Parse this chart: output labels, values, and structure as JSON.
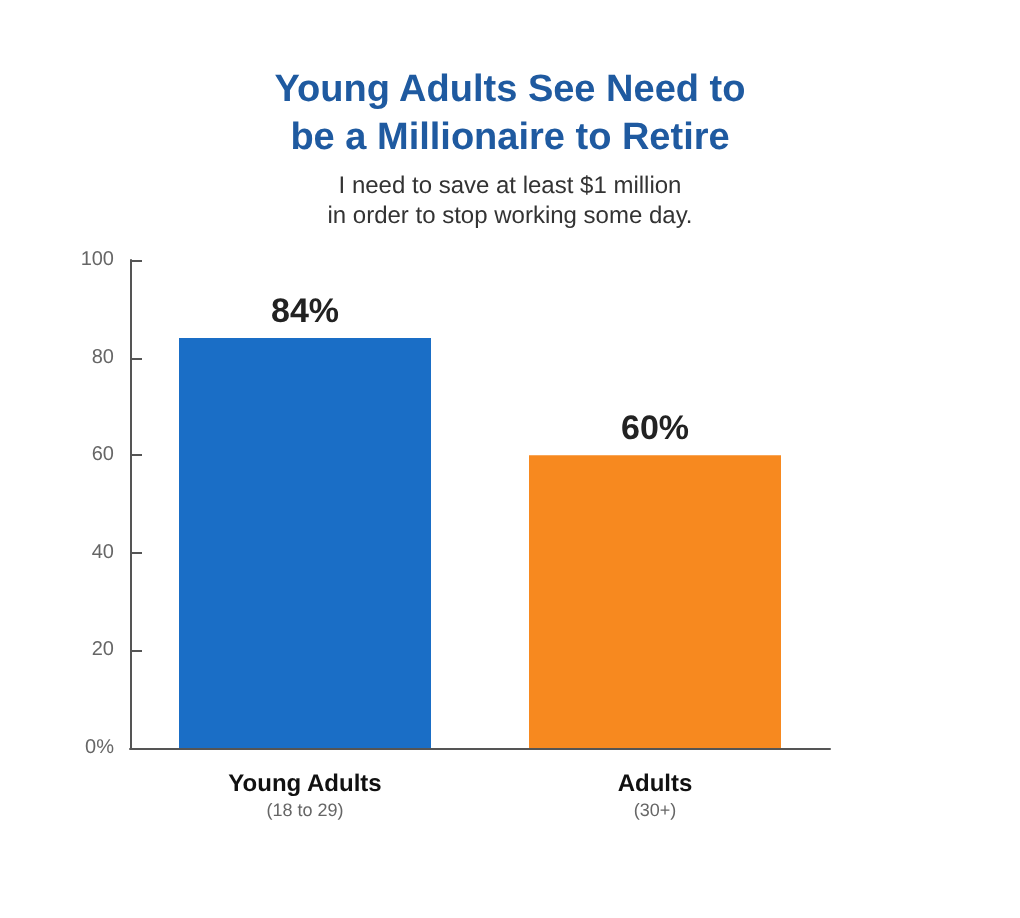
{
  "chart_data": {
    "type": "bar",
    "title": "Young Adults See Need to\nbe a Millionaire to Retire",
    "subtitle": "I need to save at least $1 million\nin order to stop working some day.",
    "categories": [
      "Young Adults\n(18 to 29)",
      "Adults\n(30+)"
    ],
    "values": [
      84,
      60
    ],
    "colors": [
      "#1a6ec6",
      "#f7891f"
    ],
    "value_labels": [
      "84%",
      "60%"
    ],
    "ylim": [
      0,
      100
    ],
    "yticks": [
      {
        "value": 0,
        "label": "0%"
      },
      20,
      40,
      60,
      80,
      100
    ],
    "grid": false
  }
}
